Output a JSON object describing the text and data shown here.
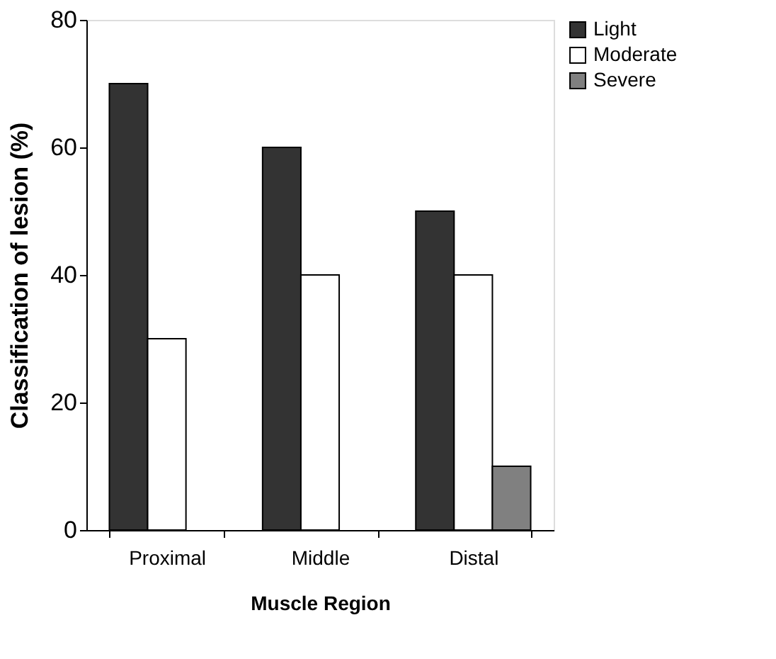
{
  "chart_data": {
    "type": "bar",
    "xlabel": "Muscle Region",
    "ylabel": "Classification of lesion (%)",
    "categories": [
      "Proximal",
      "Middle",
      "Distal"
    ],
    "series": [
      {
        "name": "Light",
        "color": "#333333",
        "values": [
          70,
          60,
          50
        ]
      },
      {
        "name": "Moderate",
        "color": "#ffffff",
        "values": [
          30,
          40,
          40
        ]
      },
      {
        "name": "Severe",
        "color": "#808080",
        "values": [
          null,
          null,
          10
        ]
      }
    ],
    "ylim": [
      0,
      80
    ],
    "yticks": [
      0,
      20,
      40,
      60,
      80
    ],
    "grid": false,
    "legend": "right"
  }
}
